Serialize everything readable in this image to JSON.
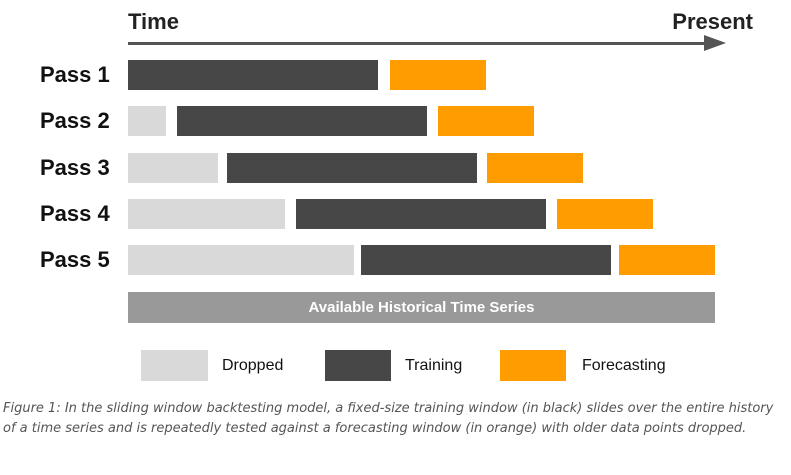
{
  "header": {
    "time_label": "Time",
    "present_label": "Present"
  },
  "passes": [
    {
      "label": "Pass 1"
    },
    {
      "label": "Pass 2"
    },
    {
      "label": "Pass 3"
    },
    {
      "label": "Pass 4"
    },
    {
      "label": "Pass 5"
    }
  ],
  "history_bar_label": "Available Historical Time Series",
  "legend": {
    "dropped": "Dropped",
    "training": "Training",
    "forecasting": "Forecasting"
  },
  "colors": {
    "dropped": "#d9d9d9",
    "training": "#474747",
    "forecasting": "#ff9c00",
    "history": "#999999",
    "arrow": "#555555"
  },
  "caption": "Figure 1: In the sliding window backtesting model, a fixed-size training window (in black) slides over the entire history of a time series and is repeatedly tested against a forecasting window (in orange) with older data points dropped."
}
